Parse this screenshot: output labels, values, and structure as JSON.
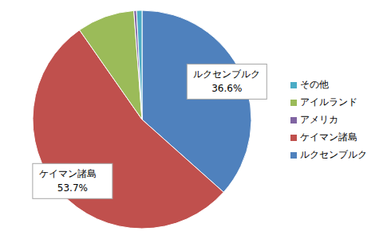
{
  "chart_data": {
    "type": "pie",
    "categories": [
      "ルクセンブルク",
      "ケイマン諸島",
      "アイルランド",
      "アメリカ",
      "その他"
    ],
    "values": [
      36.6,
      53.7,
      8.5,
      0.4,
      0.8
    ],
    "value_labels": [
      "36.6%",
      "53.7%",
      null,
      null,
      null
    ],
    "colors": [
      "#4f81bd",
      "#c0504d",
      "#9bbb59",
      "#8064a2",
      "#4bacc6"
    ],
    "data_labels": true,
    "legend": "right"
  }
}
